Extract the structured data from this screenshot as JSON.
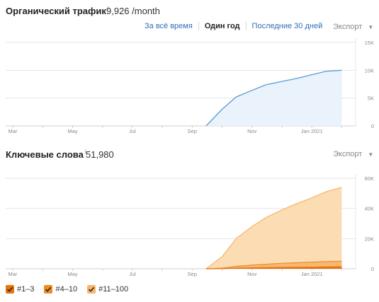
{
  "organic": {
    "title": "Органический трафик",
    "info_icon": "i",
    "value": "9,926 /month",
    "tabs": [
      {
        "label": "За всё время",
        "active": false
      },
      {
        "label": "Один год",
        "active": true
      },
      {
        "label": "Последние 30 дней",
        "active": false
      }
    ],
    "export_label": "Экспорт",
    "color": "#5b9bd5",
    "fill_color": "#eaf2fb"
  },
  "keywords": {
    "title": "Ключевые слова",
    "info_icon": "i",
    "value": "51,980",
    "export_label": "Экспорт"
  },
  "legend": [
    {
      "label": "#1–3",
      "color": "#e8720c",
      "checked": true
    },
    {
      "label": "#4–10",
      "color": "#f08a24",
      "checked": true
    },
    {
      "label": "#11–100",
      "color": "#f6b56a",
      "checked": true
    }
  ],
  "chart_data": [
    {
      "type": "area",
      "x_ticks": [
        "Mar",
        "May",
        "Jul",
        "Sep",
        "Nov",
        "Jan 2021"
      ],
      "y_ticks": [
        "15K",
        "10K",
        "5K",
        "0"
      ],
      "ylim": [
        0,
        15000
      ],
      "grid": true,
      "series": [
        {
          "color": "#5b9bd5",
          "x": [
            "Oct 15",
            "Nov 1",
            "Nov 15",
            "Dec 1",
            "Dec 15",
            "Jan 1",
            "Jan 15",
            "Feb 1",
            "Feb 15",
            "Mar 1"
          ],
          "values": [
            0,
            3000,
            5200,
            6400,
            7400,
            8000,
            8500,
            9200,
            9800,
            10000
          ]
        }
      ]
    },
    {
      "type": "area",
      "x_ticks": [
        "Mar",
        "May",
        "Jul",
        "Sep",
        "Nov",
        "Jan 2021"
      ],
      "y_ticks": [
        "60K",
        "40K",
        "20K",
        "0"
      ],
      "ylim": [
        0,
        60000
      ],
      "grid": true,
      "series": [
        {
          "name": "#11–100",
          "color": "#f6b56a",
          "x": [
            "Oct 15",
            "Nov 1",
            "Nov 15",
            "Dec 1",
            "Dec 15",
            "Jan 1",
            "Jan 15",
            "Feb 1",
            "Feb 15",
            "Mar 1"
          ],
          "values": [
            0,
            8000,
            20000,
            28000,
            34000,
            39000,
            43000,
            47000,
            51000,
            54000
          ]
        },
        {
          "name": "#4–10",
          "color": "#f08a24",
          "x": [
            "Oct 15",
            "Nov 1",
            "Nov 15",
            "Dec 1",
            "Dec 15",
            "Jan 1",
            "Jan 15",
            "Feb 1",
            "Feb 15",
            "Mar 1"
          ],
          "values": [
            0,
            400,
            1600,
            2400,
            3000,
            3600,
            4000,
            4400,
            4700,
            5000
          ]
        },
        {
          "name": "#1–3",
          "color": "#e8720c",
          "x": [
            "Oct 15",
            "Nov 1",
            "Nov 15",
            "Dec 1",
            "Dec 15",
            "Jan 1",
            "Jan 15",
            "Feb 1",
            "Feb 15",
            "Mar 1"
          ],
          "values": [
            0,
            100,
            400,
            600,
            800,
            900,
            1000,
            1100,
            1200,
            1300
          ]
        }
      ]
    }
  ]
}
